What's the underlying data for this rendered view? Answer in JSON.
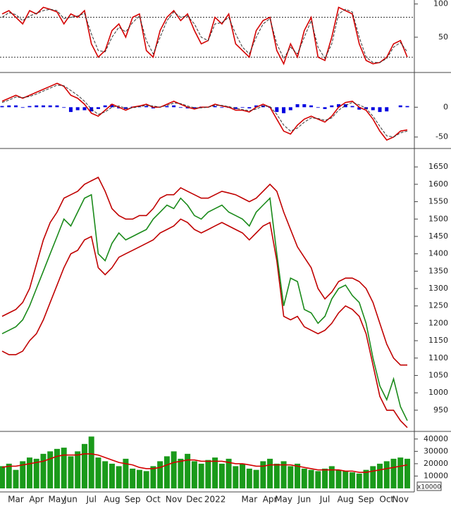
{
  "chart_data": [
    {
      "type": "line",
      "ylim": [
        -2,
        106
      ],
      "yticks": [
        50,
        100
      ],
      "levels": [
        20,
        80
      ],
      "series": [
        {
          "color": "#d40000",
          "values": [
            85,
            90,
            80,
            70,
            90,
            85,
            95,
            92,
            88,
            70,
            85,
            80,
            90,
            40,
            20,
            30,
            60,
            70,
            50,
            80,
            85,
            30,
            20,
            60,
            80,
            90,
            75,
            85,
            60,
            40,
            45,
            80,
            70,
            85,
            40,
            30,
            20,
            60,
            75,
            80,
            30,
            10,
            40,
            20,
            60,
            80,
            20,
            15,
            50,
            95,
            90,
            85,
            40,
            15,
            10,
            12,
            20,
            40,
            45,
            20
          ]
        },
        {
          "color": "#333333",
          "dash": true,
          "values": [
            80,
            87,
            84,
            75,
            82,
            86,
            90,
            92,
            90,
            78,
            80,
            82,
            86,
            55,
            30,
            28,
            50,
            65,
            58,
            72,
            82,
            45,
            25,
            50,
            75,
            88,
            80,
            82,
            70,
            50,
            45,
            70,
            72,
            80,
            55,
            35,
            25,
            50,
            70,
            78,
            40,
            18,
            35,
            25,
            50,
            75,
            35,
            18,
            40,
            85,
            92,
            88,
            50,
            20,
            12,
            12,
            18,
            35,
            42,
            28
          ]
        }
      ]
    },
    {
      "type": "line",
      "ylim": [
        -68,
        57
      ],
      "yticks": [
        0,
        -50
      ],
      "series": [
        {
          "type": "bar",
          "color": "#0000e0",
          "values": [
            2,
            3,
            3,
            -1,
            2,
            3,
            3,
            3,
            3,
            -1,
            -8,
            -5,
            -5,
            -7,
            -3,
            3,
            5,
            -2,
            -3,
            1,
            1,
            2,
            -2,
            0,
            2,
            3,
            -1,
            -2,
            -2,
            1,
            0,
            2,
            -1,
            -1,
            -3,
            -1,
            -2,
            3,
            3,
            -1,
            -8,
            -10,
            -5,
            5,
            5,
            3,
            -1,
            -3,
            3,
            5,
            5,
            2,
            -4,
            -3,
            -5,
            -8,
            -7,
            0,
            3,
            2
          ]
        },
        {
          "color": "#d40000",
          "values": [
            10,
            15,
            20,
            15,
            20,
            25,
            30,
            35,
            40,
            35,
            20,
            15,
            5,
            -10,
            -15,
            -5,
            5,
            0,
            -5,
            0,
            2,
            5,
            0,
            0,
            5,
            10,
            5,
            0,
            -3,
            0,
            0,
            5,
            2,
            0,
            -5,
            -5,
            -8,
            0,
            5,
            0,
            -20,
            -40,
            -45,
            -30,
            -20,
            -15,
            -20,
            -25,
            -15,
            0,
            8,
            10,
            0,
            -5,
            -20,
            -40,
            -55,
            -50,
            -40,
            -38
          ]
        },
        {
          "color": "#333333",
          "dash": true,
          "values": [
            8,
            12,
            17,
            16,
            18,
            22,
            27,
            32,
            37,
            36,
            28,
            20,
            10,
            -3,
            -12,
            -8,
            0,
            2,
            -2,
            -1,
            1,
            3,
            2,
            0,
            3,
            7,
            6,
            2,
            -1,
            -1,
            0,
            3,
            3,
            1,
            -2,
            -4,
            -6,
            -3,
            2,
            1,
            -12,
            -30,
            -40,
            -35,
            -25,
            -18,
            -19,
            -22,
            -18,
            -5,
            3,
            8,
            4,
            -2,
            -15,
            -32,
            -48,
            -50,
            -43,
            -40
          ]
        }
      ]
    },
    {
      "type": "line",
      "ylim": [
        891,
        1701
      ],
      "yticks": [
        950,
        1000,
        1050,
        1100,
        1150,
        1200,
        1250,
        1300,
        1350,
        1400,
        1450,
        1500,
        1550,
        1600,
        1650
      ],
      "series": [
        {
          "color": "#c00000",
          "values": [
            1220,
            1230,
            1240,
            1260,
            1300,
            1370,
            1440,
            1490,
            1520,
            1560,
            1570,
            1580,
            1600,
            1610,
            1620,
            1580,
            1530,
            1510,
            1500,
            1500,
            1510,
            1510,
            1530,
            1560,
            1570,
            1570,
            1590,
            1580,
            1570,
            1560,
            1560,
            1570,
            1580,
            1575,
            1570,
            1560,
            1550,
            1560,
            1580,
            1600,
            1580,
            1520,
            1470,
            1420,
            1390,
            1360,
            1300,
            1270,
            1290,
            1320,
            1330,
            1330,
            1320,
            1300,
            1260,
            1200,
            1140,
            1100,
            1080,
            1080
          ]
        },
        {
          "color": "#c00000",
          "values": [
            1120,
            1110,
            1110,
            1120,
            1150,
            1170,
            1210,
            1260,
            1310,
            1360,
            1400,
            1410,
            1440,
            1450,
            1360,
            1340,
            1360,
            1390,
            1400,
            1410,
            1420,
            1430,
            1440,
            1460,
            1470,
            1480,
            1500,
            1490,
            1470,
            1460,
            1470,
            1480,
            1490,
            1480,
            1470,
            1460,
            1440,
            1460,
            1480,
            1490,
            1380,
            1220,
            1210,
            1220,
            1190,
            1180,
            1170,
            1180,
            1200,
            1230,
            1250,
            1240,
            1220,
            1170,
            1080,
            990,
            950,
            950,
            920,
            900
          ]
        },
        {
          "color": "#1a8a1a",
          "values": [
            1170,
            1180,
            1190,
            1210,
            1250,
            1300,
            1350,
            1400,
            1450,
            1500,
            1480,
            1520,
            1560,
            1570,
            1400,
            1380,
            1430,
            1460,
            1440,
            1450,
            1460,
            1470,
            1500,
            1520,
            1540,
            1530,
            1560,
            1540,
            1510,
            1500,
            1520,
            1530,
            1540,
            1520,
            1510,
            1500,
            1480,
            1520,
            1540,
            1560,
            1400,
            1250,
            1330,
            1320,
            1240,
            1230,
            1200,
            1220,
            1270,
            1300,
            1310,
            1280,
            1260,
            1200,
            1100,
            1020,
            980,
            1040,
            960,
            920
          ]
        }
      ]
    },
    {
      "type": "bar",
      "ylim": [
        -2300,
        45600
      ],
      "yticks": [
        10000,
        20000,
        30000,
        40000
      ],
      "unit": "x10000",
      "categories": [
        null,
        null,
        "Mar",
        null,
        null,
        "Apr",
        null,
        null,
        "May",
        null,
        "Jun",
        null,
        null,
        "Jul",
        null,
        null,
        "Aug",
        null,
        null,
        "Sep",
        null,
        null,
        "Oct",
        null,
        null,
        "Nov",
        null,
        null,
        "Dec",
        null,
        null,
        "2022",
        null,
        null,
        null,
        null,
        "Mar",
        null,
        null,
        "Apr",
        null,
        "May",
        null,
        null,
        "Jun",
        null,
        null,
        "Jul",
        null,
        null,
        "Aug",
        null,
        null,
        "Sep",
        null,
        null,
        "Oct",
        null,
        "Nov",
        null
      ],
      "series": [
        {
          "color": "#1a9a1a",
          "values": [
            18000,
            20000,
            15000,
            22000,
            25000,
            24000,
            28000,
            30000,
            32000,
            33000,
            26000,
            30000,
            36000,
            42000,
            25000,
            22000,
            20000,
            18000,
            24000,
            16000,
            15000,
            14000,
            18000,
            22000,
            26000,
            30000,
            24000,
            28000,
            22000,
            20000,
            23000,
            25000,
            20000,
            24000,
            18000,
            20000,
            16000,
            15000,
            22000,
            24000,
            20000,
            22000,
            18000,
            20000,
            16000,
            15000,
            14000,
            16000,
            18000,
            15000,
            14000,
            13000,
            12000,
            15000,
            18000,
            20000,
            22000,
            24000,
            25000,
            24000
          ]
        },
        {
          "type": "line",
          "color": "#d40000",
          "values": [
            17000,
            18000,
            18000,
            19000,
            20000,
            21000,
            22000,
            24000,
            26000,
            27000,
            27000,
            27000,
            28000,
            28000,
            27000,
            25000,
            23000,
            21000,
            20000,
            19000,
            17000,
            16000,
            16000,
            17000,
            19000,
            21000,
            22000,
            23000,
            23000,
            22000,
            22000,
            22000,
            22000,
            21000,
            20000,
            20000,
            19000,
            18000,
            18000,
            19000,
            19000,
            19000,
            19000,
            18000,
            17000,
            16000,
            15000,
            15000,
            15000,
            15000,
            14000,
            14000,
            13000,
            13000,
            14000,
            15000,
            16000,
            17000,
            18000,
            19000
          ]
        }
      ]
    }
  ]
}
